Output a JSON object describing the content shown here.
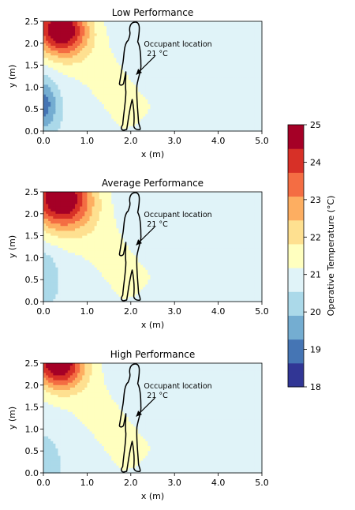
{
  "chart_data": [
    {
      "type": "heatmap",
      "title": "Low Performance",
      "xlabel": "x (m)",
      "ylabel": "y (m)",
      "xlim": [
        0,
        5
      ],
      "ylim": [
        0,
        2.5
      ],
      "xticks": [
        "0.0",
        "1.0",
        "2.0",
        "3.0",
        "4.0",
        "5.0"
      ],
      "yticks": [
        "0.0",
        "0.5",
        "1.0",
        "1.5",
        "2.0",
        "2.5"
      ],
      "hot_spot": {
        "x": 0.4,
        "y": 2.3,
        "max_temperature": 25
      },
      "cool_zone": {
        "x": 0.0,
        "y": 0.6,
        "min_temperature": 19.5
      },
      "annotation": {
        "label": "Occupant location",
        "value": "21 °C",
        "point_x": 2.05,
        "point_y": 1.25
      }
    },
    {
      "type": "heatmap",
      "title": "Average Performance",
      "xlabel": "x (m)",
      "ylabel": "y (m)",
      "xlim": [
        0,
        5
      ],
      "ylim": [
        0,
        2.5
      ],
      "xticks": [
        "0.0",
        "1.0",
        "2.0",
        "3.0",
        "4.0",
        "5.0"
      ],
      "yticks": [
        "0.0",
        "0.5",
        "1.0",
        "1.5",
        "2.0",
        "2.5"
      ],
      "hot_spot": {
        "x": 0.4,
        "y": 2.35,
        "max_temperature": 25
      },
      "cool_zone": {
        "x": 0.0,
        "y": 0.6,
        "min_temperature": 20.5
      },
      "annotation": {
        "label": "Occupant location",
        "value": "21 °C",
        "point_x": 2.05,
        "point_y": 1.25
      }
    },
    {
      "type": "heatmap",
      "title": "High Performance",
      "xlabel": "x (m)",
      "ylabel": "y (m)",
      "xlim": [
        0,
        5
      ],
      "ylim": [
        0,
        2.5
      ],
      "xticks": [
        "0.0",
        "1.0",
        "2.0",
        "3.0",
        "4.0",
        "5.0"
      ],
      "yticks": [
        "0.0",
        "0.5",
        "1.0",
        "1.5",
        "2.0",
        "2.5"
      ],
      "hot_spot": {
        "x": 0.35,
        "y": 2.5,
        "max_temperature": 25
      },
      "cool_zone": {
        "x": 0.0,
        "y": 0.2,
        "min_temperature": 20.5
      },
      "annotation": {
        "label": "Occupant location",
        "value": "21 °C",
        "point_x": 2.05,
        "point_y": 1.25
      }
    }
  ],
  "colorbar": {
    "label": "Operative Temperature (°C)",
    "min": 18,
    "max": 25,
    "ticks": [
      "18",
      "19",
      "20",
      "21",
      "22",
      "23",
      "24",
      "25"
    ],
    "colors": [
      "#313695",
      "#4575b4",
      "#74add1",
      "#abd9e9",
      "#e0f3f8",
      "#ffffbf",
      "#fee090",
      "#fdae61",
      "#f46d43",
      "#d73027",
      "#a50026"
    ]
  }
}
